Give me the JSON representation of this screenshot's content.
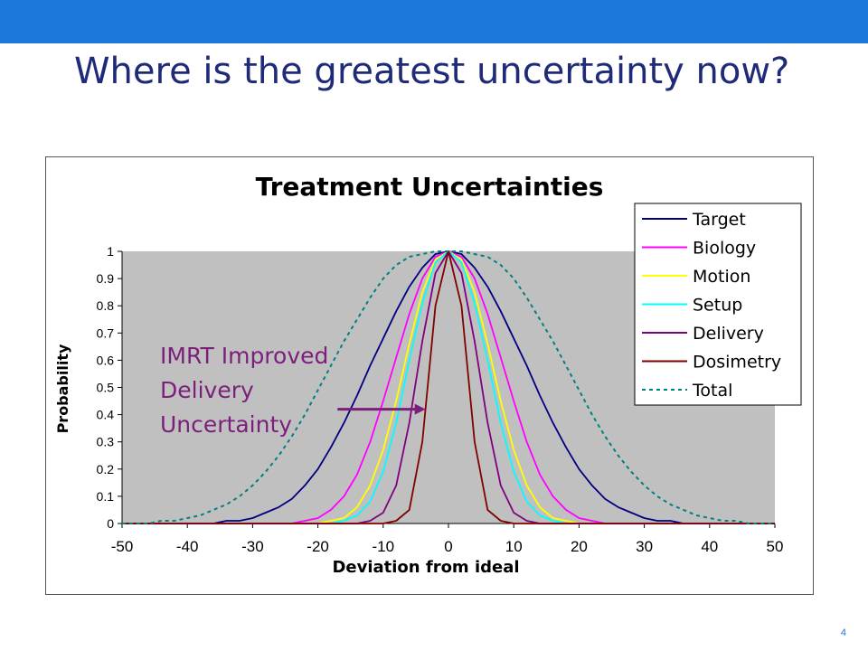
{
  "slide": {
    "title": "Where is the greatest uncertainty now?",
    "page_number": "4",
    "header_bar_color": "#1e78dc",
    "title_color": "#1f2a78"
  },
  "chart_data": {
    "type": "line",
    "title": "Treatment Uncertainties",
    "xlabel": "Deviation from ideal",
    "ylabel": "Probability",
    "xlim": [
      -50,
      50
    ],
    "ylim": [
      0,
      1
    ],
    "x_ticks": [
      -50,
      -40,
      -30,
      -20,
      -10,
      0,
      10,
      20,
      30,
      40,
      50
    ],
    "x_tick_labels": [
      "-50",
      "-40",
      "-30",
      "-20",
      "-10",
      "0",
      "10",
      "20",
      "30",
      "40",
      "50"
    ],
    "y_ticks": [
      0,
      0.1,
      0.2,
      0.3,
      0.4,
      0.5,
      0.6,
      0.7,
      0.8,
      0.9,
      1
    ],
    "y_tick_labels": [
      "0",
      "0.1",
      "0.2",
      "0.3",
      "0.4",
      "0.5",
      "0.6",
      "0.7",
      "0.8",
      "0.9",
      "1"
    ],
    "plot_background": "#c0c0c0",
    "grid": false,
    "legend_position": "top-right",
    "x": [
      -50,
      -48,
      -46,
      -44,
      -42,
      -40,
      -38,
      -36,
      -34,
      -32,
      -30,
      -28,
      -26,
      -24,
      -22,
      -20,
      -18,
      -16,
      -14,
      -12,
      -10,
      -8,
      -6,
      -4,
      -2,
      0,
      2,
      4,
      6,
      8,
      10,
      12,
      14,
      16,
      18,
      20,
      22,
      24,
      26,
      28,
      30,
      32,
      34,
      36,
      38,
      40,
      42,
      44,
      46,
      48,
      50
    ],
    "series": [
      {
        "name": "Target",
        "color": "#000080",
        "dashed": false,
        "values": [
          0,
          0,
          0,
          0,
          0,
          0,
          0,
          0,
          0.01,
          0.01,
          0.02,
          0.04,
          0.06,
          0.09,
          0.14,
          0.2,
          0.28,
          0.37,
          0.47,
          0.58,
          0.68,
          0.78,
          0.87,
          0.94,
          0.99,
          1,
          0.99,
          0.94,
          0.87,
          0.78,
          0.68,
          0.58,
          0.47,
          0.37,
          0.28,
          0.2,
          0.14,
          0.09,
          0.06,
          0.04,
          0.02,
          0.01,
          0.01,
          0,
          0,
          0,
          0,
          0,
          0,
          0,
          0
        ]
      },
      {
        "name": "Biology",
        "color": "#ff00ff",
        "dashed": false,
        "values": [
          0,
          0,
          0,
          0,
          0,
          0,
          0,
          0,
          0,
          0,
          0,
          0,
          0,
          0,
          0.01,
          0.02,
          0.05,
          0.1,
          0.18,
          0.3,
          0.45,
          0.61,
          0.77,
          0.9,
          0.98,
          1,
          0.98,
          0.9,
          0.77,
          0.61,
          0.45,
          0.3,
          0.18,
          0.1,
          0.05,
          0.02,
          0.01,
          0,
          0,
          0,
          0,
          0,
          0,
          0,
          0,
          0,
          0,
          0,
          0,
          0,
          0
        ]
      },
      {
        "name": "Motion",
        "color": "#ffff00",
        "dashed": false,
        "values": [
          0,
          0,
          0,
          0,
          0,
          0,
          0,
          0,
          0,
          0,
          0,
          0,
          0,
          0,
          0,
          0,
          0.01,
          0.02,
          0.06,
          0.14,
          0.27,
          0.45,
          0.66,
          0.85,
          0.97,
          1,
          0.97,
          0.85,
          0.66,
          0.45,
          0.27,
          0.14,
          0.06,
          0.02,
          0.01,
          0,
          0,
          0,
          0,
          0,
          0,
          0,
          0,
          0,
          0,
          0,
          0,
          0,
          0,
          0,
          0
        ]
      },
      {
        "name": "Setup",
        "color": "#00ffff",
        "dashed": false,
        "values": [
          0,
          0,
          0,
          0,
          0,
          0,
          0,
          0,
          0,
          0,
          0,
          0,
          0,
          0,
          0,
          0,
          0,
          0.01,
          0.03,
          0.08,
          0.19,
          0.37,
          0.6,
          0.81,
          0.96,
          1,
          0.96,
          0.81,
          0.6,
          0.37,
          0.19,
          0.08,
          0.03,
          0.01,
          0,
          0,
          0,
          0,
          0,
          0,
          0,
          0,
          0,
          0,
          0,
          0,
          0,
          0,
          0,
          0,
          0
        ]
      },
      {
        "name": "Delivery",
        "color": "#800080",
        "dashed": false,
        "values": [
          0,
          0,
          0,
          0,
          0,
          0,
          0,
          0,
          0,
          0,
          0,
          0,
          0,
          0,
          0,
          0,
          0,
          0,
          0,
          0.01,
          0.04,
          0.14,
          0.37,
          0.67,
          0.92,
          1,
          0.92,
          0.67,
          0.37,
          0.14,
          0.04,
          0.01,
          0,
          0,
          0,
          0,
          0,
          0,
          0,
          0,
          0,
          0,
          0,
          0,
          0,
          0,
          0,
          0,
          0,
          0,
          0
        ]
      },
      {
        "name": "Dosimetry",
        "color": "#800000",
        "dashed": false,
        "values": [
          0,
          0,
          0,
          0,
          0,
          0,
          0,
          0,
          0,
          0,
          0,
          0,
          0,
          0,
          0,
          0,
          0,
          0,
          0,
          0,
          0,
          0.01,
          0.05,
          0.3,
          0.8,
          1,
          0.8,
          0.3,
          0.05,
          0.01,
          0,
          0,
          0,
          0,
          0,
          0,
          0,
          0,
          0,
          0,
          0,
          0,
          0,
          0,
          0,
          0,
          0,
          0,
          0,
          0,
          0
        ]
      },
      {
        "name": "Total",
        "color": "#008080",
        "dashed": true,
        "values": [
          0,
          0,
          0,
          0.01,
          0.01,
          0.02,
          0.03,
          0.05,
          0.07,
          0.1,
          0.14,
          0.19,
          0.25,
          0.32,
          0.4,
          0.49,
          0.58,
          0.67,
          0.75,
          0.83,
          0.9,
          0.95,
          0.98,
          0.99,
          1,
          1,
          1,
          0.99,
          0.98,
          0.95,
          0.9,
          0.83,
          0.75,
          0.67,
          0.58,
          0.49,
          0.4,
          0.32,
          0.25,
          0.19,
          0.14,
          0.1,
          0.07,
          0.05,
          0.03,
          0.02,
          0.01,
          0.01,
          0,
          0,
          0
        ]
      }
    ],
    "annotation": {
      "lines": [
        "IMRT Improved",
        "Delivery",
        "Uncertainty"
      ],
      "color": "#7b1f7b",
      "arrow_from": {
        "x": -17,
        "y": 0.42
      },
      "arrow_to": {
        "x": -3.5,
        "y": 0.42
      }
    }
  }
}
